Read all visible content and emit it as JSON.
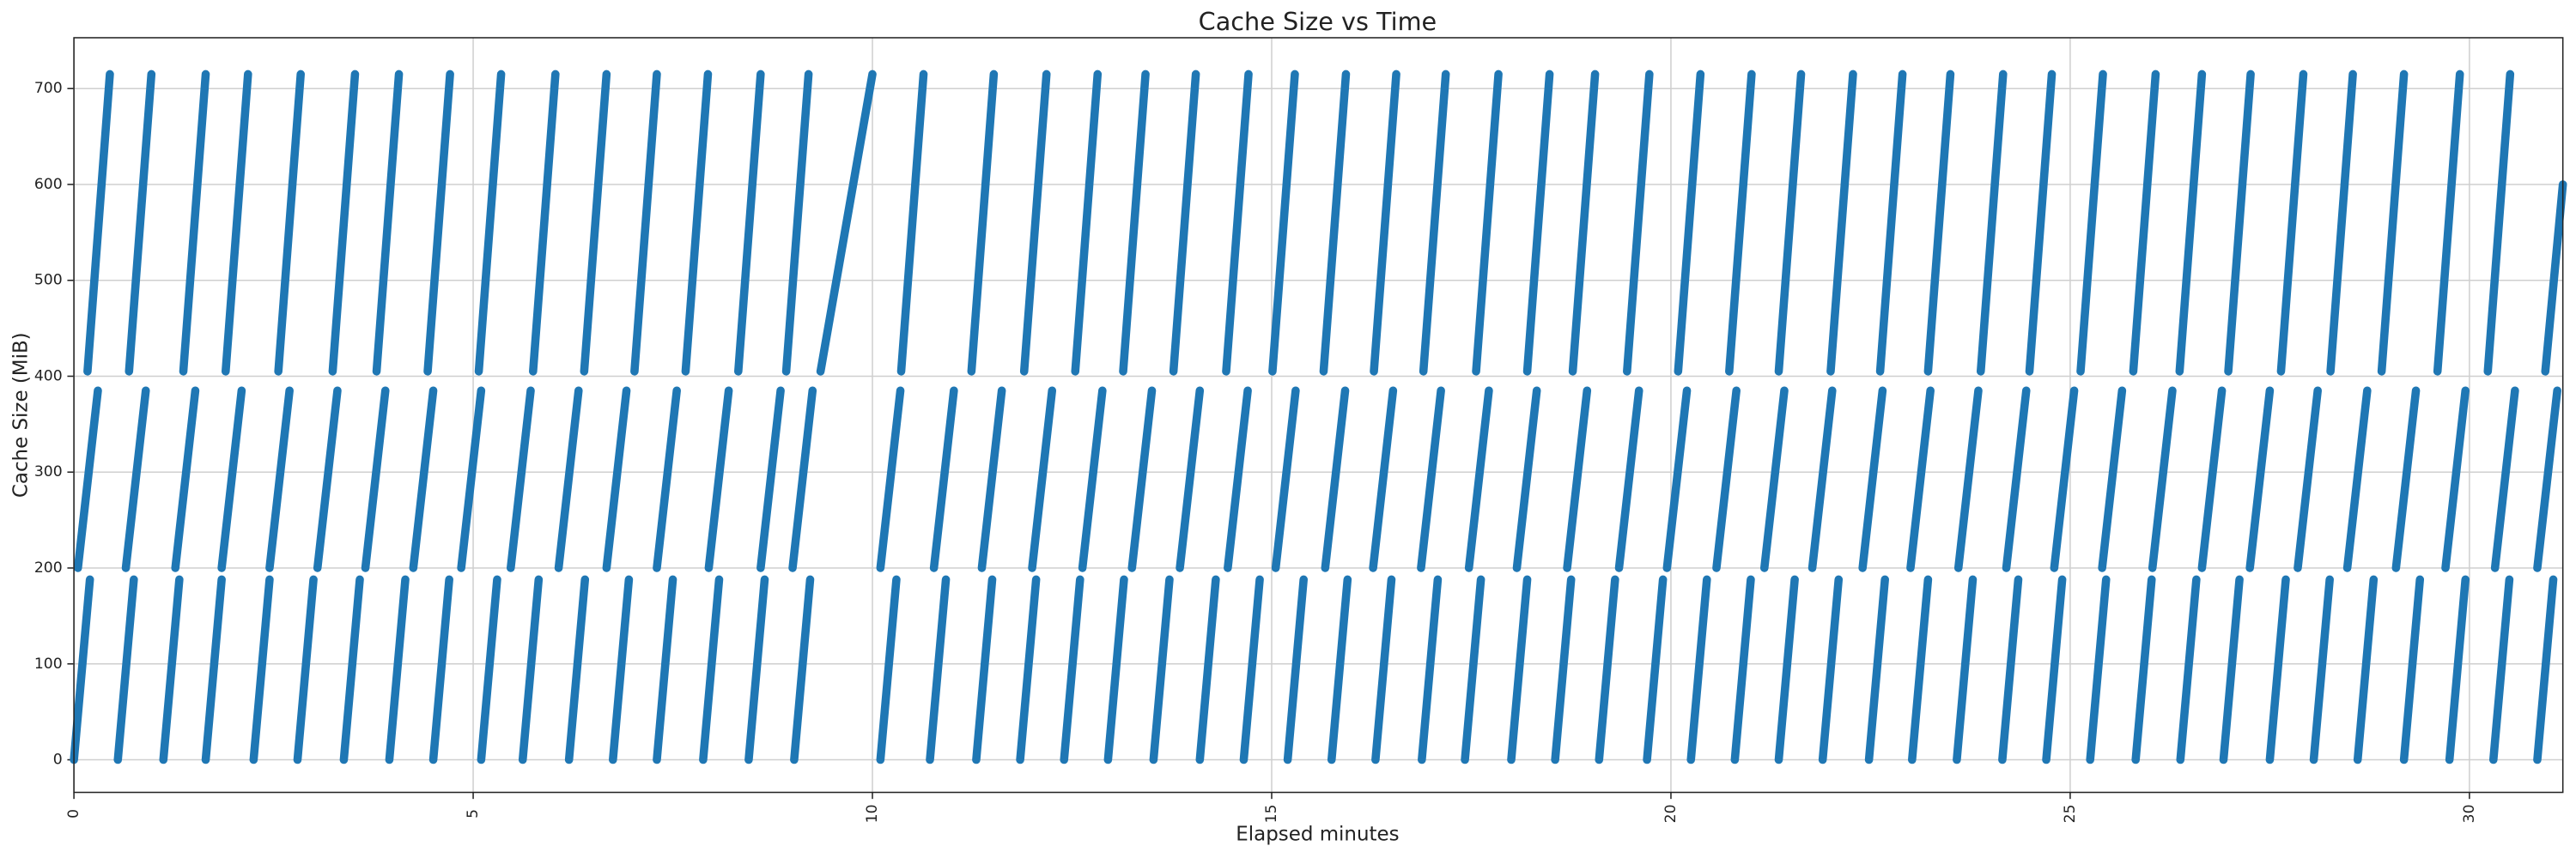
{
  "chart_data": {
    "type": "line",
    "title": "Cache Size vs Time",
    "x_label": "Elapsed minutes",
    "y_label": "Cache Size (MiB)",
    "color": "#1f77b4",
    "grid": true,
    "xlim": [
      0,
      31.17
    ],
    "xticks": [
      0,
      5,
      10,
      15,
      20,
      25,
      30
    ],
    "ylim": [
      -34,
      753
    ],
    "yticks": [
      0,
      100,
      200,
      300,
      400,
      500,
      600,
      700
    ],
    "x": [
      0.17,
      0.45,
      null,
      0.69,
      0.97,
      null,
      1.37,
      1.65,
      null,
      1.9,
      2.18,
      null,
      2.56,
      2.84,
      null,
      3.24,
      3.52,
      null,
      3.79,
      4.07,
      null,
      4.43,
      4.71,
      null,
      5.07,
      5.35,
      null,
      5.75,
      6.03,
      null,
      6.39,
      6.67,
      null,
      7.02,
      7.3,
      null,
      7.66,
      7.94,
      null,
      8.32,
      8.6,
      null,
      8.92,
      9.2,
      null,
      9.35,
      10.0,
      null,
      10.36,
      10.64,
      null,
      11.24,
      11.52,
      null,
      11.9,
      12.18,
      null,
      12.54,
      12.82,
      null,
      13.14,
      13.42,
      null,
      13.77,
      14.05,
      null,
      14.43,
      14.71,
      null,
      15.01,
      15.29,
      null,
      15.65,
      15.93,
      null,
      16.28,
      16.56,
      null,
      16.9,
      17.18,
      null,
      17.56,
      17.84,
      null,
      18.2,
      18.48,
      null,
      18.77,
      19.05,
      null,
      19.45,
      19.73,
      null,
      20.09,
      20.37,
      null,
      20.73,
      21.01,
      null,
      21.35,
      21.63,
      null,
      22.0,
      22.28,
      null,
      22.62,
      22.9,
      null,
      23.22,
      23.5,
      null,
      23.88,
      24.16,
      null,
      24.49,
      24.77,
      null,
      25.13,
      25.41,
      null,
      25.79,
      26.07,
      null,
      26.37,
      26.65,
      null,
      26.98,
      27.26,
      null,
      27.64,
      27.92,
      null,
      28.26,
      28.54,
      null,
      28.9,
      29.18,
      null,
      29.6,
      29.88,
      null,
      30.23,
      30.51,
      null,
      30.95,
      31.17,
      null,
      0.05,
      0.3,
      null,
      0.65,
      0.9,
      null,
      1.27,
      1.52,
      null,
      1.85,
      2.1,
      null,
      2.45,
      2.7,
      null,
      3.05,
      3.3,
      null,
      3.65,
      3.9,
      null,
      4.25,
      4.5,
      null,
      4.85,
      5.1,
      null,
      5.47,
      5.72,
      null,
      6.07,
      6.32,
      null,
      6.67,
      6.92,
      null,
      7.3,
      7.55,
      null,
      7.95,
      8.2,
      null,
      8.6,
      8.85,
      null,
      9.0,
      9.25,
      null,
      10.1,
      10.35,
      null,
      10.77,
      11.02,
      null,
      11.37,
      11.62,
      null,
      12.0,
      12.25,
      null,
      12.63,
      12.88,
      null,
      13.25,
      13.5,
      null,
      13.85,
      14.1,
      null,
      14.45,
      14.7,
      null,
      15.05,
      15.3,
      null,
      15.67,
      15.92,
      null,
      16.27,
      16.52,
      null,
      16.87,
      17.12,
      null,
      17.47,
      17.72,
      null,
      18.07,
      18.32,
      null,
      18.7,
      18.95,
      null,
      19.35,
      19.6,
      null,
      19.95,
      20.2,
      null,
      20.57,
      20.82,
      null,
      21.17,
      21.42,
      null,
      21.77,
      22.02,
      null,
      22.4,
      22.65,
      null,
      23.0,
      23.25,
      null,
      23.6,
      23.85,
      null,
      24.2,
      24.45,
      null,
      24.8,
      25.05,
      null,
      25.4,
      25.65,
      null,
      26.03,
      26.28,
      null,
      26.65,
      26.9,
      null,
      27.25,
      27.5,
      null,
      27.85,
      28.1,
      null,
      28.47,
      28.72,
      null,
      29.08,
      29.33,
      null,
      29.7,
      29.95,
      null,
      30.32,
      30.57,
      null,
      30.85,
      31.1,
      null,
      0.0,
      0.2,
      null,
      0.55,
      0.75,
      null,
      1.12,
      1.32,
      null,
      1.65,
      1.85,
      null,
      2.25,
      2.45,
      null,
      2.8,
      3.0,
      null,
      3.38,
      3.58,
      null,
      3.95,
      4.15,
      null,
      4.5,
      4.7,
      null,
      5.1,
      5.3,
      null,
      5.62,
      5.82,
      null,
      6.2,
      6.4,
      null,
      6.75,
      6.95,
      null,
      7.3,
      7.5,
      null,
      7.88,
      8.08,
      null,
      8.45,
      8.65,
      null,
      9.02,
      9.22,
      null,
      10.1,
      10.3,
      null,
      10.72,
      10.92,
      null,
      11.3,
      11.5,
      null,
      11.85,
      12.05,
      null,
      12.4,
      12.6,
      null,
      12.95,
      13.15,
      null,
      13.52,
      13.72,
      null,
      14.1,
      14.3,
      null,
      14.65,
      14.85,
      null,
      15.2,
      15.4,
      null,
      15.75,
      15.95,
      null,
      16.3,
      16.5,
      null,
      16.88,
      17.08,
      null,
      17.42,
      17.62,
      null,
      18.0,
      18.2,
      null,
      18.55,
      18.75,
      null,
      19.1,
      19.3,
      null,
      19.7,
      19.9,
      null,
      20.25,
      20.45,
      null,
      20.8,
      21.0,
      null,
      21.35,
      21.55,
      null,
      21.9,
      22.1,
      null,
      22.48,
      22.68,
      null,
      23.02,
      23.22,
      null,
      23.58,
      23.78,
      null,
      24.15,
      24.35,
      null,
      24.7,
      24.9,
      null,
      25.25,
      25.45,
      null,
      25.82,
      26.02,
      null,
      26.38,
      26.58,
      null,
      26.92,
      27.12,
      null,
      27.5,
      27.7,
      null,
      28.05,
      28.25,
      null,
      28.6,
      28.8,
      null,
      29.18,
      29.38,
      null,
      29.75,
      29.95,
      null,
      30.3,
      30.5,
      null,
      30.85,
      31.05
    ],
    "values": [
      405,
      715,
      null,
      405,
      715,
      null,
      405,
      715,
      null,
      405,
      715,
      null,
      405,
      715,
      null,
      405,
      715,
      null,
      405,
      715,
      null,
      405,
      715,
      null,
      405,
      715,
      null,
      405,
      715,
      null,
      405,
      715,
      null,
      405,
      715,
      null,
      405,
      715,
      null,
      405,
      715,
      null,
      405,
      715,
      null,
      405,
      715,
      null,
      405,
      715,
      null,
      405,
      715,
      null,
      405,
      715,
      null,
      405,
      715,
      null,
      405,
      715,
      null,
      405,
      715,
      null,
      405,
      715,
      null,
      405,
      715,
      null,
      405,
      715,
      null,
      405,
      715,
      null,
      405,
      715,
      null,
      405,
      715,
      null,
      405,
      715,
      null,
      405,
      715,
      null,
      405,
      715,
      null,
      405,
      715,
      null,
      405,
      715,
      null,
      405,
      715,
      null,
      405,
      715,
      null,
      405,
      715,
      null,
      405,
      715,
      null,
      405,
      715,
      null,
      405,
      715,
      null,
      405,
      715,
      null,
      405,
      715,
      null,
      405,
      715,
      null,
      405,
      715,
      null,
      405,
      715,
      null,
      405,
      715,
      null,
      405,
      715,
      null,
      405,
      715,
      null,
      405,
      715,
      null,
      405,
      600,
      null,
      200,
      385,
      null,
      200,
      385,
      null,
      200,
      385,
      null,
      200,
      385,
      null,
      200,
      385,
      null,
      200,
      385,
      null,
      200,
      385,
      null,
      200,
      385,
      null,
      200,
      385,
      null,
      200,
      385,
      null,
      200,
      385,
      null,
      200,
      385,
      null,
      200,
      385,
      null,
      200,
      385,
      null,
      200,
      385,
      null,
      200,
      385,
      null,
      200,
      385,
      null,
      200,
      385,
      null,
      200,
      385,
      null,
      200,
      385,
      null,
      200,
      385,
      null,
      200,
      385,
      null,
      200,
      385,
      null,
      200,
      385,
      null,
      200,
      385,
      null,
      200,
      385,
      null,
      200,
      385,
      null,
      200,
      385,
      null,
      200,
      385,
      null,
      200,
      385,
      null,
      200,
      385,
      null,
      200,
      385,
      null,
      200,
      385,
      null,
      200,
      385,
      null,
      200,
      385,
      null,
      200,
      385,
      null,
      200,
      385,
      null,
      200,
      385,
      null,
      200,
      385,
      null,
      200,
      385,
      null,
      200,
      385,
      null,
      200,
      385,
      null,
      200,
      385,
      null,
      200,
      385,
      null,
      200,
      385,
      null,
      200,
      385,
      null,
      200,
      385,
      null,
      200,
      385,
      null,
      200,
      385,
      null,
      200,
      385,
      null,
      200,
      385,
      null,
      0,
      188,
      null,
      0,
      188,
      null,
      0,
      188,
      null,
      0,
      188,
      null,
      0,
      188,
      null,
      0,
      188,
      null,
      0,
      188,
      null,
      0,
      188,
      null,
      0,
      188,
      null,
      0,
      188,
      null,
      0,
      188,
      null,
      0,
      188,
      null,
      0,
      188,
      null,
      0,
      188,
      null,
      0,
      188,
      null,
      0,
      188,
      null,
      0,
      188,
      null,
      0,
      188,
      null,
      0,
      188,
      null,
      0,
      188,
      null,
      0,
      188,
      null,
      0,
      188,
      null,
      0,
      188,
      null,
      0,
      188,
      null,
      0,
      188,
      null,
      0,
      188,
      null,
      0,
      188,
      null,
      0,
      188,
      null,
      0,
      188,
      null,
      0,
      188,
      null,
      0,
      188,
      null,
      0,
      188,
      null,
      0,
      188,
      null,
      0,
      188,
      null,
      0,
      188,
      null,
      0,
      188,
      null,
      0,
      188,
      null,
      0,
      188,
      null,
      0,
      188,
      null,
      0,
      188,
      null,
      0,
      188,
      null,
      0,
      188,
      null,
      0,
      188,
      null,
      0,
      188,
      null,
      0,
      188,
      null,
      0,
      188,
      null,
      0,
      188,
      null,
      0,
      188,
      null,
      0,
      188,
      null,
      0,
      188,
      null,
      0,
      188,
      null,
      0,
      188,
      null,
      0,
      188,
      null,
      0,
      188,
      null,
      0,
      188
    ]
  }
}
